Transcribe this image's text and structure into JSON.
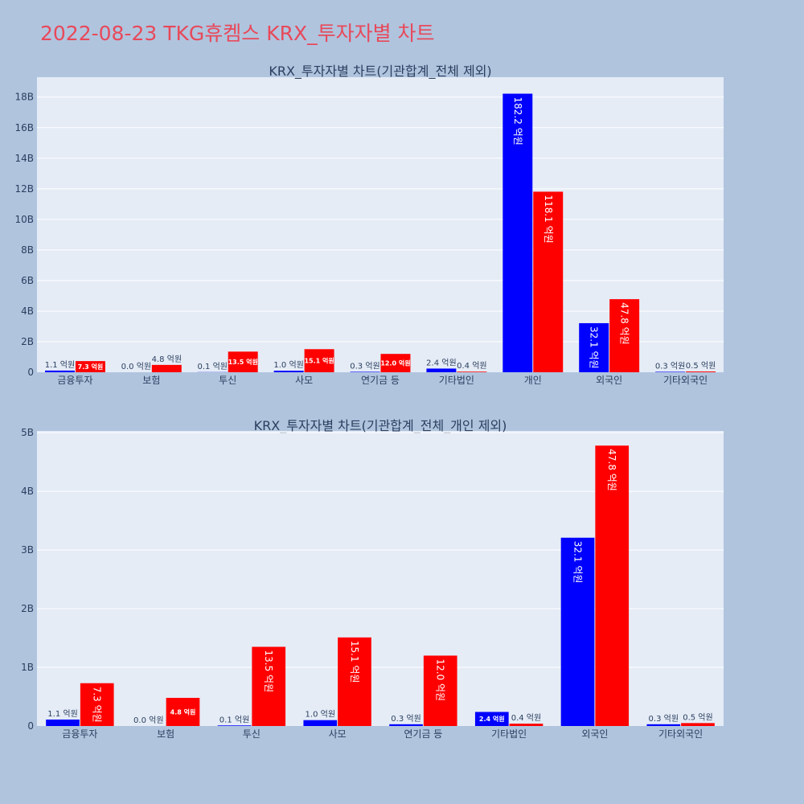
{
  "page_title": "2022-08-23 TKG휴켐스 KRX_투자자별 차트",
  "colors": {
    "background": "#b0c4de",
    "plot_background": "#e5ecf6",
    "buy": "#0000ff",
    "sell": "#ff0000",
    "title": "#e8495a"
  },
  "chart_data": [
    {
      "type": "bar",
      "title": "KRX_투자자별 차트(기관합계_전체 제외)",
      "categories": [
        "금융투자",
        "보험",
        "투신",
        "사모",
        "연기금 등",
        "기타법인",
        "개인",
        "외국인",
        "기타외국인"
      ],
      "series": [
        {
          "color": "#0000ff",
          "values": [
            110000000,
            0,
            10000000,
            100000000,
            30000000,
            240000000,
            18220000000,
            3210000000,
            30000000
          ],
          "labels": [
            "1.1 억원",
            "0.0 억원",
            "0.1 억원",
            "1.0 억원",
            "0.3 억원",
            "2.4 억원",
            "182.2 억원",
            "32.1 억원",
            "0.3 억원"
          ]
        },
        {
          "color": "#ff0000",
          "values": [
            730000000,
            480000000,
            1350000000,
            1510000000,
            1200000000,
            40000000,
            11810000000,
            4780000000,
            50000000
          ],
          "labels": [
            "7.3 억원",
            "4.8 억원",
            "13.5 억원",
            "15.1 억원",
            "12.0 억원",
            "0.4 억원",
            "118.1 억원",
            "47.8 억원",
            "0.5 억원"
          ]
        }
      ],
      "ylim": [
        0,
        19300000000
      ],
      "yticks": [
        0,
        2000000000,
        4000000000,
        6000000000,
        8000000000,
        10000000000,
        12000000000,
        14000000000,
        16000000000,
        18000000000
      ],
      "ytick_labels": [
        "0",
        "2B",
        "4B",
        "6B",
        "8B",
        "10B",
        "12B",
        "14B",
        "16B",
        "18B"
      ],
      "grid": true,
      "legend": "none"
    },
    {
      "type": "bar",
      "title": "KRX_투자자별 차트(기관합계_전체_개인 제외)",
      "categories": [
        "금융투자",
        "보험",
        "투신",
        "사모",
        "연기금 등",
        "기타법인",
        "외국인",
        "기타외국인"
      ],
      "series": [
        {
          "color": "#0000ff",
          "values": [
            110000000,
            0,
            10000000,
            100000000,
            30000000,
            240000000,
            3210000000,
            30000000
          ],
          "labels": [
            "1.1 억원",
            "0.0 억원",
            "0.1 억원",
            "1.0 억원",
            "0.3 억원",
            "2.4 억원",
            "32.1 억원",
            "0.3 억원"
          ]
        },
        {
          "color": "#ff0000",
          "values": [
            730000000,
            480000000,
            1350000000,
            1510000000,
            1200000000,
            40000000,
            4780000000,
            50000000
          ],
          "labels": [
            "7.3 억원",
            "4.8 억원",
            "13.5 억원",
            "15.1 억원",
            "12.0 억원",
            "0.4 억원",
            "47.8 억원",
            "0.5 억원"
          ]
        }
      ],
      "ylim": [
        0,
        5030000000
      ],
      "yticks": [
        0,
        1000000000,
        2000000000,
        3000000000,
        4000000000,
        5000000000
      ],
      "ytick_labels": [
        "0",
        "1B",
        "2B",
        "3B",
        "4B",
        "5B"
      ],
      "grid": true,
      "legend": "none"
    }
  ]
}
